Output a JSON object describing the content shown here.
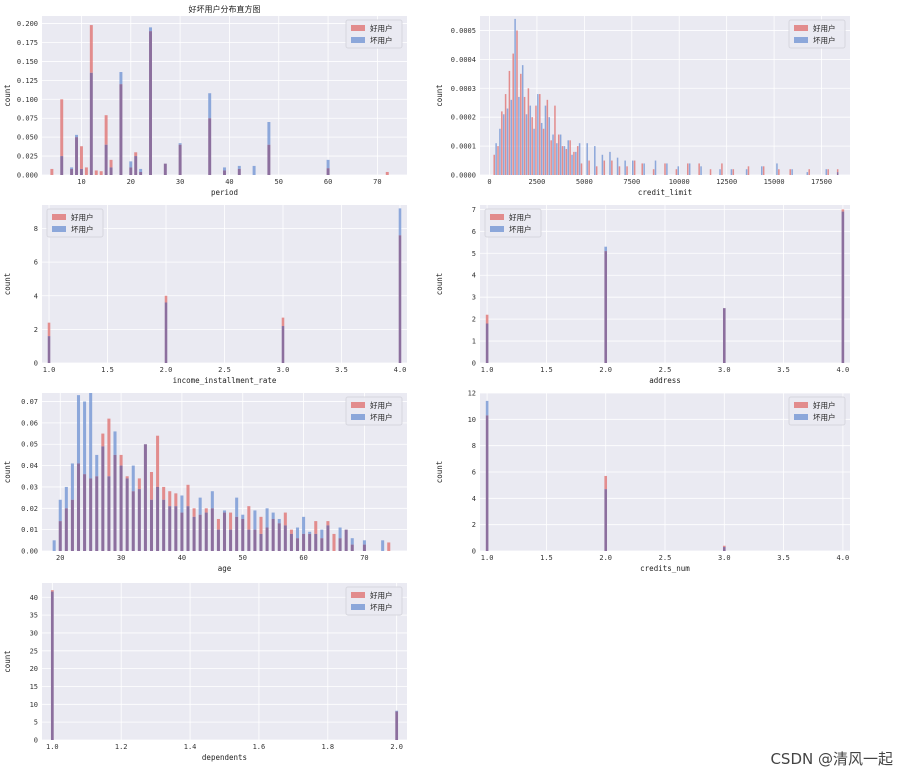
{
  "figure_title": "好坏用户分布直方图",
  "watermark": "CSDN @清风一起",
  "colors": {
    "good": "#e07b7b",
    "bad": "#7b9bd6",
    "overlap": "#8c6f9e",
    "bg": "#eaeaf2",
    "grid": "#ffffff"
  },
  "chart_data": [
    {
      "type": "bar",
      "panel": "period",
      "title": "好坏用户分布直方图",
      "xlabel": "period",
      "ylabel": "count",
      "xlim": [
        2,
        76
      ],
      "ylim": [
        0,
        0.21
      ],
      "bar_width": 0.6,
      "xticks": [
        10,
        20,
        30,
        40,
        50,
        60,
        70
      ],
      "yticks": [
        0.0,
        0.025,
        0.05,
        0.075,
        0.1,
        0.125,
        0.15,
        0.175,
        0.2
      ],
      "ytick_labels": [
        "0.000",
        "0.025",
        "0.050",
        "0.075",
        "0.100",
        "0.125",
        "0.150",
        "0.175",
        "0.200"
      ],
      "legend": "top-right",
      "series": [
        {
          "name": "好用户",
          "x": [
            4,
            6,
            8,
            9,
            10,
            11,
            12,
            13,
            14,
            15,
            16,
            18,
            20,
            21,
            22,
            24,
            27,
            30,
            36,
            39,
            42,
            48,
            60,
            72
          ],
          "values": [
            0.008,
            0.1,
            0.008,
            0.05,
            0.038,
            0.01,
            0.198,
            0.006,
            0.005,
            0.079,
            0.02,
            0.12,
            0.01,
            0.03,
            0.004,
            0.19,
            0.015,
            0.04,
            0.075,
            0.006,
            0.008,
            0.04,
            0.009,
            0.004
          ]
        },
        {
          "name": "坏用户",
          "x": [
            6,
            8,
            9,
            10,
            12,
            15,
            16,
            18,
            20,
            21,
            22,
            24,
            27,
            30,
            36,
            39,
            42,
            45,
            48,
            60
          ],
          "values": [
            0.025,
            0.01,
            0.053,
            0.008,
            0.135,
            0.04,
            0.01,
            0.136,
            0.018,
            0.025,
            0.008,
            0.195,
            0.015,
            0.042,
            0.108,
            0.01,
            0.012,
            0.012,
            0.07,
            0.02
          ]
        }
      ]
    },
    {
      "type": "bar",
      "panel": "credit_limit",
      "title": "",
      "xlabel": "credit_limit",
      "ylabel": "count",
      "xlim": [
        -500,
        19000
      ],
      "ylim": [
        0,
        0.00055
      ],
      "bar_width": 80,
      "xticks": [
        0,
        2500,
        5000,
        7500,
        10000,
        12500,
        15000,
        17500
      ],
      "yticks": [
        0.0,
        0.0001,
        0.0002,
        0.0003,
        0.0004,
        0.0005
      ],
      "ytick_labels": [
        "0.0000",
        "0.0001",
        "0.0002",
        "0.0003",
        "0.0004",
        "0.0005"
      ],
      "legend": "top-right",
      "series": [
        {
          "name": "好用户",
          "x": [
            250,
            450,
            650,
            850,
            1050,
            1250,
            1450,
            1650,
            1850,
            2050,
            2250,
            2450,
            2650,
            2850,
            3050,
            3250,
            3450,
            3650,
            3850,
            4050,
            4250,
            4450,
            4650,
            4850,
            5250,
            5650,
            6050,
            6450,
            6850,
            7250,
            7650,
            8050,
            8650,
            9250,
            9850,
            10450,
            11050,
            11650,
            12250,
            12850,
            13650,
            14450,
            15250,
            15850,
            16850,
            17850,
            18350
          ],
          "values": [
            7e-05,
            0.0001,
            0.00022,
            0.00028,
            0.00036,
            0.00042,
            0.0005,
            0.00035,
            0.00027,
            0.0003,
            0.0002,
            0.00024,
            0.00028,
            0.00016,
            0.00026,
            0.00012,
            0.00024,
            0.00014,
            0.0001,
            9e-05,
            0.00012,
            8e-05,
            0.0001,
            4e-05,
            5e-05,
            3e-05,
            5e-05,
            5e-05,
            3e-05,
            3e-05,
            5e-05,
            4e-05,
            2e-05,
            4e-05,
            2e-05,
            4e-05,
            4e-05,
            2e-05,
            4e-05,
            2e-05,
            3e-05,
            3e-05,
            2e-05,
            2e-05,
            2e-05,
            2e-05,
            2e-05
          ]
        },
        {
          "name": "坏用户",
          "x": [
            350,
            550,
            750,
            950,
            1150,
            1350,
            1550,
            1750,
            1950,
            2150,
            2350,
            2550,
            2750,
            2950,
            3150,
            3350,
            3550,
            3750,
            3950,
            4150,
            4350,
            4550,
            4750,
            5150,
            5550,
            5950,
            6350,
            6750,
            7150,
            7550,
            8150,
            8750,
            9350,
            9950,
            10550,
            11150,
            12150,
            12750,
            13550,
            14350,
            15150,
            15950,
            16750,
            17750,
            18350
          ],
          "values": [
            0.00011,
            0.00016,
            0.00021,
            0.00023,
            0.00026,
            0.00054,
            0.00027,
            0.00038,
            0.00021,
            0.00024,
            0.00016,
            0.00028,
            0.00018,
            0.00024,
            0.0002,
            0.00014,
            0.00011,
            0.00014,
            0.0001,
            0.00012,
            7e-05,
            8e-05,
            0.00011,
            0.00011,
            0.0001,
            7e-05,
            8e-05,
            6e-05,
            5e-05,
            5e-05,
            4e-05,
            5e-05,
            4e-05,
            3e-05,
            4e-05,
            3e-05,
            2e-05,
            2e-05,
            2e-05,
            3e-05,
            4e-05,
            2e-05,
            1e-05,
            2e-05,
            1e-05
          ]
        }
      ]
    },
    {
      "type": "bar",
      "panel": "income_installment_rate",
      "title": "",
      "xlabel": "income_installment_rate",
      "ylabel": "count",
      "xlim": [
        0.94,
        4.06
      ],
      "ylim": [
        0,
        9.4
      ],
      "bar_width": 0.022,
      "xticks": [
        1.0,
        1.5,
        2.0,
        2.5,
        3.0,
        3.5,
        4.0
      ],
      "xtick_labels": [
        "1.0",
        "1.5",
        "2.0",
        "2.5",
        "3.0",
        "3.5",
        "4.0"
      ],
      "yticks": [
        0,
        2,
        4,
        6,
        8
      ],
      "legend": "top-left",
      "series": [
        {
          "name": "好用户",
          "x": [
            1.0,
            2.0,
            3.0,
            4.0
          ],
          "values": [
            2.4,
            4.0,
            2.7,
            7.6
          ]
        },
        {
          "name": "坏用户",
          "x": [
            1.0,
            2.0,
            3.0,
            4.0
          ],
          "values": [
            1.6,
            3.6,
            2.2,
            9.2
          ]
        }
      ]
    },
    {
      "type": "bar",
      "panel": "address",
      "title": "",
      "xlabel": "address",
      "ylabel": "count",
      "xlim": [
        0.94,
        4.06
      ],
      "ylim": [
        0,
        7.2
      ],
      "bar_width": 0.022,
      "xticks": [
        1.0,
        1.5,
        2.0,
        2.5,
        3.0,
        3.5,
        4.0
      ],
      "xtick_labels": [
        "1.0",
        "1.5",
        "2.0",
        "2.5",
        "3.0",
        "3.5",
        "4.0"
      ],
      "yticks": [
        0,
        1,
        2,
        3,
        4,
        5,
        6,
        7
      ],
      "legend": "top-left",
      "series": [
        {
          "name": "好用户",
          "x": [
            1.0,
            2.0,
            3.0,
            4.0
          ],
          "values": [
            2.2,
            5.1,
            2.5,
            7.0
          ]
        },
        {
          "name": "坏用户",
          "x": [
            1.0,
            2.0,
            3.0,
            4.0
          ],
          "values": [
            1.8,
            5.3,
            2.5,
            6.9
          ]
        }
      ]
    },
    {
      "type": "bar",
      "panel": "age",
      "title": "",
      "xlabel": "age",
      "ylabel": "count",
      "xlim": [
        17,
        77
      ],
      "ylim": [
        0,
        0.074
      ],
      "bar_width": 0.5,
      "xticks": [
        20,
        30,
        40,
        50,
        60,
        70
      ],
      "yticks": [
        0.0,
        0.01,
        0.02,
        0.03,
        0.04,
        0.05,
        0.06,
        0.07
      ],
      "ytick_labels": [
        "0.00",
        "0.01",
        "0.02",
        "0.03",
        "0.04",
        "0.05",
        "0.06",
        "0.07"
      ],
      "legend": "top-right",
      "series": [
        {
          "name": "好用户",
          "x": [
            20,
            21,
            22,
            23,
            24,
            25,
            26,
            27,
            28,
            29,
            30,
            31,
            32,
            33,
            34,
            35,
            36,
            37,
            38,
            39,
            40,
            41,
            42,
            43,
            44,
            45,
            46,
            47,
            48,
            49,
            50,
            51,
            52,
            53,
            54,
            55,
            56,
            57,
            58,
            59,
            60,
            61,
            62,
            63,
            64,
            65,
            66,
            67,
            68,
            70,
            74
          ],
          "values": [
            0.014,
            0.02,
            0.024,
            0.041,
            0.036,
            0.034,
            0.035,
            0.055,
            0.062,
            0.045,
            0.045,
            0.035,
            0.028,
            0.034,
            0.05,
            0.037,
            0.054,
            0.03,
            0.028,
            0.027,
            0.018,
            0.031,
            0.02,
            0.017,
            0.02,
            0.02,
            0.015,
            0.018,
            0.018,
            0.016,
            0.015,
            0.021,
            0.01,
            0.016,
            0.011,
            0.015,
            0.013,
            0.018,
            0.01,
            0.006,
            0.008,
            0.008,
            0.014,
            0.006,
            0.014,
            0.008,
            0.006,
            0.01,
            0.003,
            0.003,
            0.004
          ]
        },
        {
          "name": "坏用户",
          "x": [
            19,
            20,
            21,
            22,
            23,
            24,
            25,
            26,
            27,
            28,
            29,
            30,
            31,
            32,
            33,
            34,
            35,
            36,
            37,
            38,
            39,
            40,
            41,
            42,
            43,
            44,
            45,
            46,
            47,
            48,
            49,
            50,
            51,
            52,
            53,
            54,
            55,
            56,
            57,
            58,
            59,
            60,
            61,
            62,
            63,
            64,
            66,
            67,
            68,
            70,
            73
          ],
          "values": [
            0.005,
            0.024,
            0.03,
            0.041,
            0.073,
            0.07,
            0.074,
            0.045,
            0.049,
            0.035,
            0.056,
            0.04,
            0.034,
            0.04,
            0.029,
            0.05,
            0.024,
            0.03,
            0.024,
            0.021,
            0.021,
            0.026,
            0.021,
            0.016,
            0.025,
            0.018,
            0.028,
            0.01,
            0.019,
            0.01,
            0.025,
            0.017,
            0.01,
            0.019,
            0.008,
            0.02,
            0.018,
            0.015,
            0.012,
            0.008,
            0.011,
            0.016,
            0.009,
            0.008,
            0.01,
            0.012,
            0.011,
            0.01,
            0.006,
            0.005,
            0.005
          ]
        }
      ]
    },
    {
      "type": "bar",
      "panel": "credits_num",
      "title": "",
      "xlabel": "credits_num",
      "ylabel": "count",
      "xlim": [
        0.94,
        4.06
      ],
      "ylim": [
        0,
        12
      ],
      "bar_width": 0.022,
      "xticks": [
        1.0,
        1.5,
        2.0,
        2.5,
        3.0,
        3.5,
        4.0
      ],
      "xtick_labels": [
        "1.0",
        "1.5",
        "2.0",
        "2.5",
        "3.0",
        "3.5",
        "4.0"
      ],
      "yticks": [
        0,
        2,
        4,
        6,
        8,
        10,
        12
      ],
      "legend": "top-right",
      "series": [
        {
          "name": "好用户",
          "x": [
            1.0,
            2.0,
            3.0
          ],
          "values": [
            10.3,
            5.7,
            0.4
          ]
        },
        {
          "name": "坏用户",
          "x": [
            1.0,
            2.0,
            3.0
          ],
          "values": [
            11.4,
            4.7,
            0.3
          ]
        }
      ]
    },
    {
      "type": "bar",
      "panel": "dependents",
      "title": "",
      "xlabel": "dependents",
      "ylabel": "count",
      "xlim": [
        0.97,
        2.03
      ],
      "ylim": [
        0,
        44
      ],
      "bar_width": 0.008,
      "xticks": [
        1.0,
        1.2,
        1.4,
        1.6,
        1.8,
        2.0
      ],
      "xtick_labels": [
        "1.0",
        "1.2",
        "1.4",
        "1.6",
        "1.8",
        "2.0"
      ],
      "yticks": [
        0,
        5,
        10,
        15,
        20,
        25,
        30,
        35,
        40
      ],
      "legend": "top-right",
      "series": [
        {
          "name": "好用户",
          "x": [
            1.0,
            2.0
          ],
          "values": [
            42.0,
            8.0
          ]
        },
        {
          "name": "坏用户",
          "x": [
            1.0,
            2.0
          ],
          "values": [
            41.6,
            8.2
          ]
        }
      ]
    }
  ]
}
